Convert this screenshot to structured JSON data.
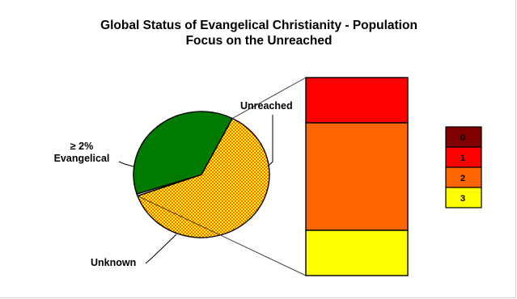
{
  "chart_data": {
    "type": "pie-of-bar",
    "title_line1": "Global Status of Evangelical Christianity - Population",
    "title_line2": "Focus on the Unreached",
    "pie": {
      "slices": [
        {
          "label": "Unreached",
          "value": 62,
          "color": "#ff6600",
          "pattern": "checker"
        },
        {
          "label": "Unknown",
          "value": 0.5,
          "color": "#ffffff"
        },
        {
          "label": "≥ 2%\nEvangelical",
          "value": 37.5,
          "color": "#007a00"
        }
      ]
    },
    "breakout_bar": {
      "segments": [
        {
          "label": "1",
          "value": 16,
          "color": "#ff0000"
        },
        {
          "label": "2",
          "value": 38,
          "color": "#ff6600"
        },
        {
          "label": "3",
          "value": 16,
          "color": "#ffff00"
        },
        {
          "label": "0",
          "value": 0,
          "color": "#800000"
        }
      ]
    },
    "legend": [
      {
        "label": "0",
        "color": "#800000"
      },
      {
        "label": "1",
        "color": "#ff0000"
      },
      {
        "label": "2",
        "color": "#ff6600"
      },
      {
        "label": "3",
        "color": "#ffff00"
      }
    ]
  }
}
